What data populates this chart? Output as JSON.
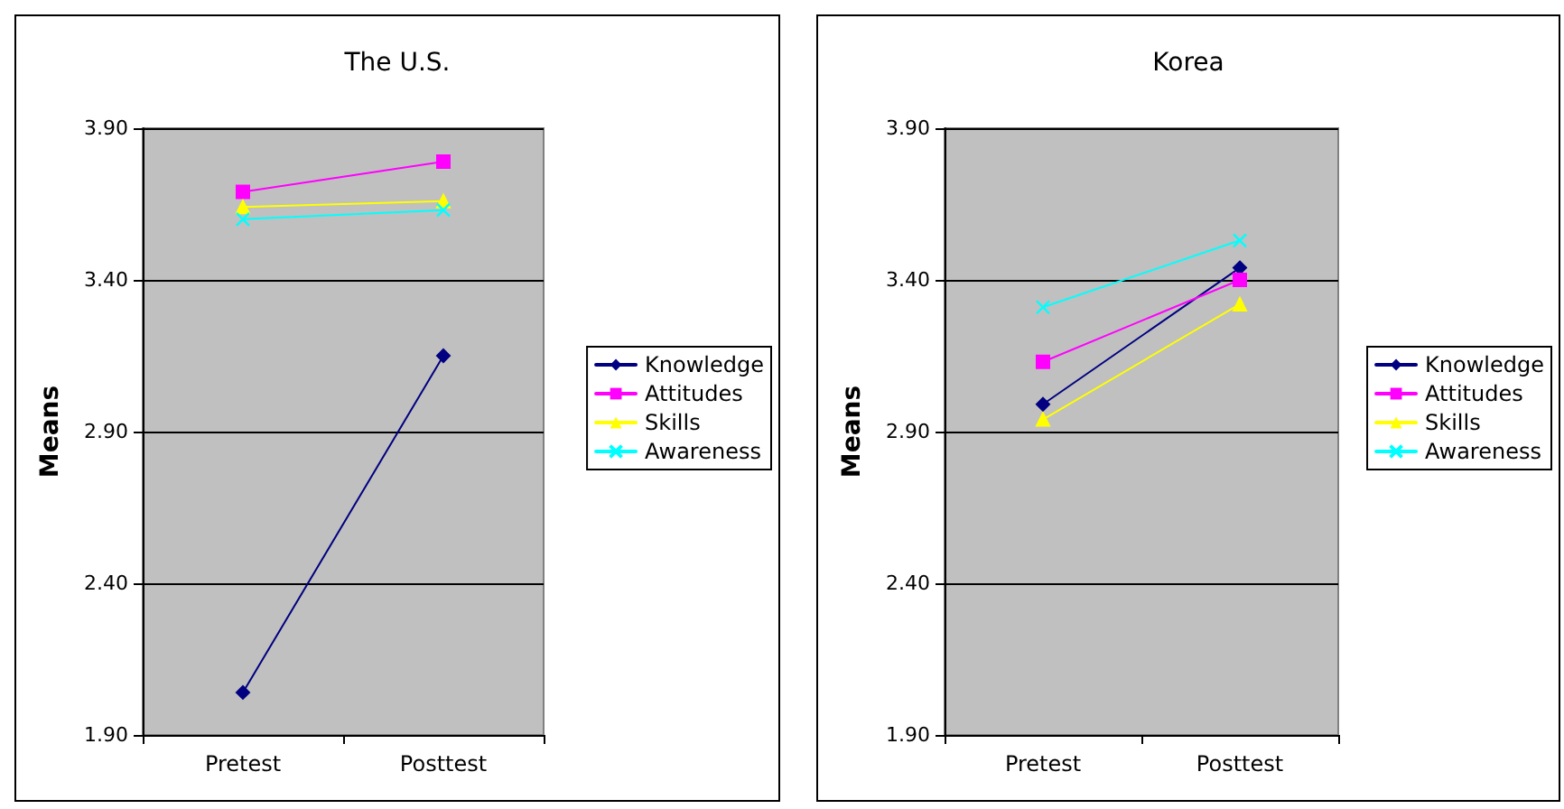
{
  "chart_data": [
    {
      "type": "line",
      "title": "The U.S.",
      "ylabel": "Means",
      "categories": [
        "Pretest",
        "Posttest"
      ],
      "ylim": [
        1.9,
        3.9
      ],
      "yticks": [
        {
          "value": 1.9,
          "label": "1.90"
        },
        {
          "value": 2.4,
          "label": "2.40"
        },
        {
          "value": 2.9,
          "label": "2.90"
        },
        {
          "value": 3.4,
          "label": "3.40"
        },
        {
          "value": 3.9,
          "label": "3.90"
        }
      ],
      "grid": "y",
      "legend": "right",
      "series": [
        {
          "name": "Knowledge",
          "color": "#000080",
          "marker": "diamond",
          "values": [
            2.04,
            3.15
          ]
        },
        {
          "name": "Attitudes",
          "color": "#ff00ff",
          "marker": "square",
          "values": [
            3.69,
            3.79
          ]
        },
        {
          "name": "Skills",
          "color": "#ffff00",
          "marker": "triangle",
          "values": [
            3.64,
            3.66
          ]
        },
        {
          "name": "Awareness",
          "color": "#00ffff",
          "marker": "cross",
          "values": [
            3.6,
            3.63
          ]
        }
      ]
    },
    {
      "type": "line",
      "title": "Korea",
      "ylabel": "Means",
      "categories": [
        "Pretest",
        "Posttest"
      ],
      "ylim": [
        1.9,
        3.9
      ],
      "yticks": [
        {
          "value": 1.9,
          "label": "1.90"
        },
        {
          "value": 2.4,
          "label": "2.40"
        },
        {
          "value": 2.9,
          "label": "2.90"
        },
        {
          "value": 3.4,
          "label": "3.40"
        },
        {
          "value": 3.9,
          "label": "3.90"
        }
      ],
      "grid": "y",
      "legend": "right",
      "series": [
        {
          "name": "Knowledge",
          "color": "#000080",
          "marker": "diamond",
          "values": [
            2.99,
            3.44
          ]
        },
        {
          "name": "Attitudes",
          "color": "#ff00ff",
          "marker": "square",
          "values": [
            3.13,
            3.4
          ]
        },
        {
          "name": "Skills",
          "color": "#ffff00",
          "marker": "triangle",
          "values": [
            2.94,
            3.32
          ]
        },
        {
          "name": "Awareness",
          "color": "#00ffff",
          "marker": "cross",
          "values": [
            3.31,
            3.53
          ]
        }
      ]
    }
  ]
}
